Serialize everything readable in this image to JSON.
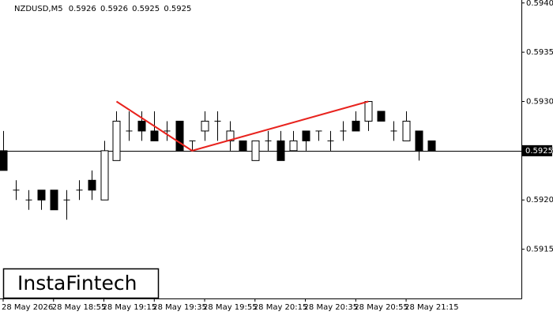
{
  "chart_data": {
    "type": "candlestick",
    "symbol": "NZDUSD,M5",
    "ohlc": [
      0.5926,
      0.5926,
      0.5925,
      0.5925
    ],
    "logo": "InstaFintech",
    "x_labels": [
      "28 May 2026",
      "28 May 18:55",
      "28 May 19:15",
      "28 May 19:35",
      "28 May 19:55",
      "28 May 20:15",
      "28 May 20:35",
      "28 May 20:55",
      "28 May 21:15"
    ],
    "open": [
      0.5925,
      0.5921,
      0.592,
      0.5921,
      0.5921,
      0.592,
      0.5921,
      0.5922,
      0.592,
      0.5924,
      0.5927,
      0.5928,
      0.5927,
      0.5927,
      0.5928,
      0.5926,
      0.5927,
      0.5928,
      0.5926,
      0.5926,
      0.5924,
      0.5926,
      0.5926,
      0.5925,
      0.5927,
      0.5927,
      0.5926,
      0.5927,
      0.5928,
      0.5928,
      0.5929,
      0.5927,
      0.5926,
      0.5927,
      0.5926
    ],
    "high": [
      0.5927,
      0.5922,
      0.5921,
      0.5921,
      0.5921,
      0.5921,
      0.5922,
      0.5923,
      0.5926,
      0.5929,
      0.5929,
      0.5929,
      0.5929,
      0.5928,
      0.5928,
      0.5926,
      0.5929,
      0.5929,
      0.5928,
      0.5926,
      0.5926,
      0.5927,
      0.5927,
      0.5927,
      0.5927,
      0.5927,
      0.5927,
      0.5928,
      0.5929,
      0.593,
      0.5929,
      0.5928,
      0.5929,
      0.5927,
      0.5926
    ],
    "low": [
      0.5923,
      0.592,
      0.5919,
      0.5919,
      0.5919,
      0.5918,
      0.592,
      0.592,
      0.592,
      0.5924,
      0.5926,
      0.5926,
      0.5926,
      0.5926,
      0.5925,
      0.5925,
      0.5926,
      0.5926,
      0.5925,
      0.5925,
      0.5924,
      0.5925,
      0.5924,
      0.5925,
      0.5925,
      0.5926,
      0.5925,
      0.5926,
      0.5927,
      0.5927,
      0.5928,
      0.5926,
      0.5926,
      0.5924,
      0.5925
    ],
    "close": [
      0.5923,
      0.5921,
      0.592,
      0.592,
      0.5919,
      0.592,
      0.5921,
      0.5921,
      0.5925,
      0.5928,
      0.5927,
      0.5927,
      0.5926,
      0.5927,
      0.5925,
      0.5926,
      0.5928,
      0.5928,
      0.5927,
      0.5925,
      0.5926,
      0.5926,
      0.5924,
      0.5926,
      0.5926,
      0.5927,
      0.5926,
      0.5927,
      0.5927,
      0.593,
      0.5928,
      0.5927,
      0.5928,
      0.5925,
      0.5925
    ],
    "pattern": {
      "color": "#e8231e",
      "index": [
        9,
        15,
        29
      ],
      "price": [
        0.593,
        0.5925,
        0.593
      ]
    },
    "level": 0.5925,
    "last_price": 0.5925,
    "ylim": [
      0.591,
      0.59403
    ],
    "yticks": [
      0.5915,
      {
        "value": 0.592,
        "label": "0.5920"
      },
      0.5925,
      {
        "value": 0.593,
        "label": "0.5930"
      },
      0.5935,
      {
        "value": 0.594,
        "label": "0.5940"
      }
    ]
  }
}
